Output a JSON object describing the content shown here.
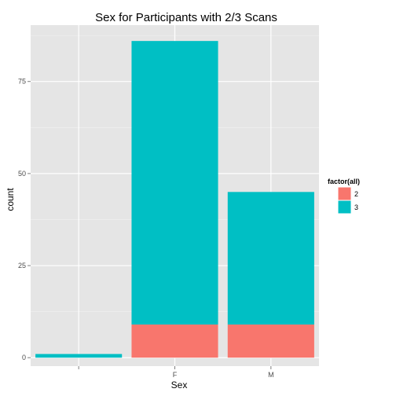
{
  "chart_data": {
    "type": "bar",
    "stacked": true,
    "title": "Sex for Participants with 2/3 Scans",
    "xlabel": "Sex",
    "ylabel": "count",
    "categories": [
      "",
      "F",
      "M"
    ],
    "series": [
      {
        "name": "2",
        "values": [
          0,
          9,
          9
        ],
        "color": "#f8766d"
      },
      {
        "name": "3",
        "values": [
          1,
          77,
          36
        ],
        "color": "#00bfc4"
      }
    ],
    "ylim": [
      -2.3,
      90.3
    ],
    "yticks": [
      0,
      25,
      50,
      75
    ],
    "ytick_labels": [
      "0",
      "25",
      "50",
      "75"
    ],
    "grid": true,
    "panel_background": "#e5e5e5",
    "legend": {
      "title": "factor(all)",
      "position": "right",
      "labels": [
        "2",
        "3"
      ]
    }
  }
}
